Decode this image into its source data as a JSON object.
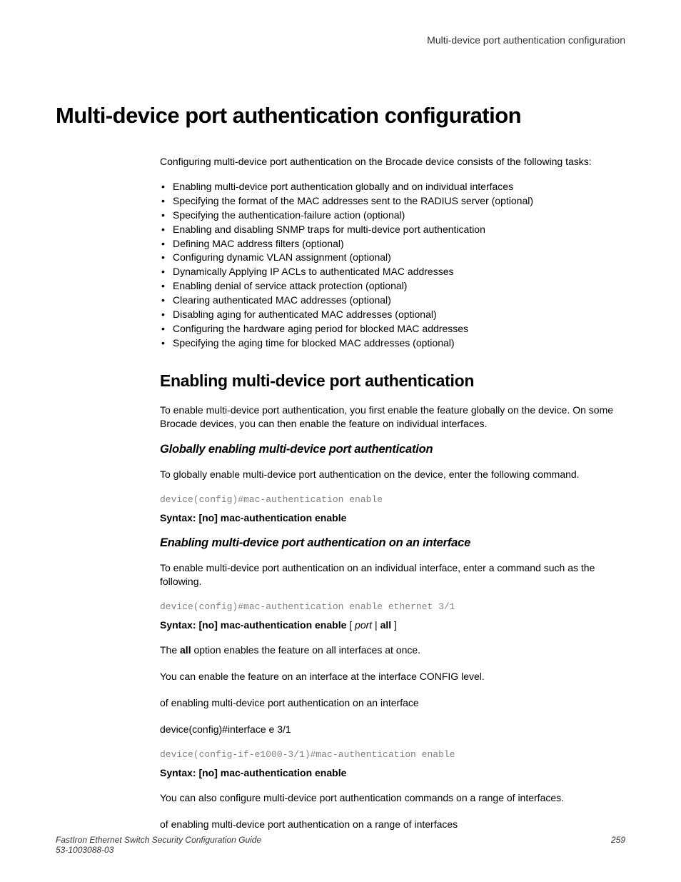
{
  "header": {
    "running_title": "Multi-device port authentication configuration"
  },
  "title": "Multi-device port authentication configuration",
  "intro": "Configuring multi-device port authentication on the Brocade device consists of the following tasks:",
  "bullets": [
    "Enabling multi-device port authentication globally and on individual interfaces",
    "Specifying the format of the MAC addresses sent to the RADIUS server (optional)",
    "Specifying the authentication-failure action (optional)",
    "Enabling and disabling SNMP traps for multi-device port authentication",
    "Defining MAC address filters (optional)",
    "Configuring dynamic VLAN assignment (optional)",
    "Dynamically Applying IP ACLs to authenticated MAC addresses",
    "Enabling denial of service attack protection (optional)",
    "Clearing authenticated MAC addresses (optional)",
    "Disabling aging for authenticated MAC addresses (optional)",
    "Configuring the hardware aging period for blocked MAC addresses",
    "Specifying the aging time for blocked MAC addresses (optional)"
  ],
  "section1": {
    "heading": "Enabling multi-device port authentication",
    "para": "To enable multi-device port authentication, you first enable the feature globally on the device. On some Brocade devices, you can then enable the feature on individual interfaces."
  },
  "sub1": {
    "heading": "Globally enabling multi-device port authentication",
    "para": "To globally enable multi-device port authentication on the device, enter the following command.",
    "code": "device(config)#mac-authentication enable",
    "syntax_bold": "Syntax: [no] mac-authentication enable"
  },
  "sub2": {
    "heading": "Enabling multi-device port authentication on an interface",
    "para1": "To enable multi-device port authentication on an individual interface, enter a command such as the following.",
    "code1": "device(config)#mac-authentication enable ethernet 3/1",
    "syntax_label": "Syntax: [no] mac-authentication enable",
    "syntax_bracket_open": " [ ",
    "syntax_port": "port",
    "syntax_pipe": " | ",
    "syntax_all": "all",
    "syntax_bracket_close": " ]",
    "para2_pre": "The ",
    "para2_bold": "all",
    "para2_post": " option enables the feature on all interfaces at once.",
    "para3": "You can enable the feature on an interface at the interface CONFIG level.",
    "para4": "of enabling multi-device port authentication on an interface",
    "para5": "device(config)#interface e 3/1",
    "code2": "device(config-if-e1000-3/1)#mac-authentication enable",
    "syntax2": "Syntax: [no] mac-authentication enable",
    "para6": "You can also configure multi-device port authentication commands on a range of interfaces.",
    "para7": "of enabling multi-device port authentication on a range of interfaces"
  },
  "footer": {
    "guide": "FastIron Ethernet Switch Security Configuration Guide",
    "docnum": "53-1003088-03",
    "page": "259"
  }
}
